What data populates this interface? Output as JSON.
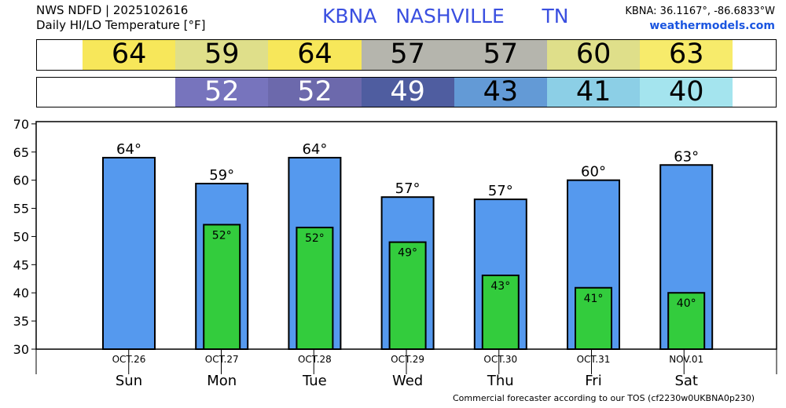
{
  "header": {
    "line1": "NWS NDFD | 2025102616",
    "line2": "Daily HI/LO Temperature [°F]",
    "station": "KBNA",
    "city": "NASHVILLE",
    "state": "TN",
    "coords": "KBNA: 36.1167°, -86.6833°W",
    "site": "weathermodels.com"
  },
  "footer": "Commercial forecaster according to our TOS (cf2230w0UKBNA0p230)",
  "hi_strip": [
    {
      "value": "64",
      "color": "#f7e75a",
      "text_color": "#000000"
    },
    {
      "value": "59",
      "color": "#dfdf8a",
      "text_color": "#000000"
    },
    {
      "value": "64",
      "color": "#f7e75a",
      "text_color": "#000000"
    },
    {
      "value": "57",
      "color": "#b5b5ad",
      "text_color": "#000000"
    },
    {
      "value": "57",
      "color": "#b5b5ad",
      "text_color": "#000000"
    },
    {
      "value": "60",
      "color": "#dfdf8a",
      "text_color": "#000000"
    },
    {
      "value": "63",
      "color": "#f7eb6b",
      "text_color": "#000000"
    }
  ],
  "lo_strip": [
    {
      "value": "",
      "color": "#ffffff",
      "text_color": "#000000"
    },
    {
      "value": "52",
      "color": "#7774bd",
      "text_color": "#ffffff"
    },
    {
      "value": "52",
      "color": "#6c69ac",
      "text_color": "#ffffff"
    },
    {
      "value": "49",
      "color": "#4f5da0",
      "text_color": "#ffffff"
    },
    {
      "value": "43",
      "color": "#639ad6",
      "text_color": "#000000"
    },
    {
      "value": "41",
      "color": "#8ccfe6",
      "text_color": "#000000"
    },
    {
      "value": "40",
      "color": "#a4e4ee",
      "text_color": "#000000"
    }
  ],
  "chart_data": {
    "type": "bar",
    "days": [
      "Sun",
      "Mon",
      "Tue",
      "Wed",
      "Thu",
      "Fri",
      "Sat"
    ],
    "dates": [
      "OCT.26",
      "OCT.27",
      "OCT.28",
      "OCT.29",
      "OCT.30",
      "OCT.31",
      "NOV.01"
    ],
    "series": [
      {
        "name": "HI",
        "values": [
          64,
          59.4,
          64,
          57,
          56.6,
          60,
          62.7
        ],
        "labels": [
          "64°",
          "59°",
          "64°",
          "57°",
          "57°",
          "60°",
          "63°"
        ],
        "color": "#5599ee"
      },
      {
        "name": "LO",
        "values": [
          null,
          52.1,
          51.6,
          49,
          43.1,
          40.9,
          40
        ],
        "labels": [
          "",
          "52°",
          "52°",
          "49°",
          "43°",
          "41°",
          "40°"
        ],
        "color": "#33cc3d"
      }
    ],
    "yticks": [
      30,
      35,
      40,
      45,
      50,
      55,
      60,
      65,
      70
    ],
    "ylim": [
      30,
      70.4
    ],
    "grid": false
  }
}
